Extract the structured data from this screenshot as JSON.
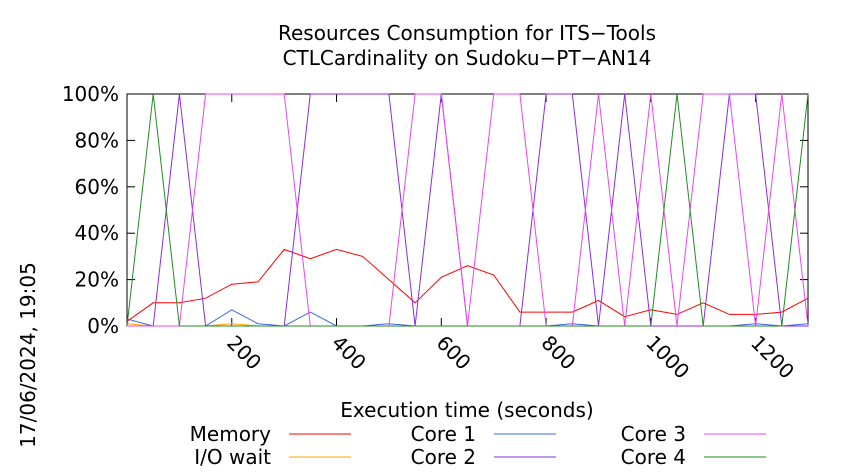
{
  "chart_data": {
    "type": "line",
    "title_lines": [
      "Resources Consumption for ITS−Tools",
      "CTLCardinality on Sudoku−PT−AN14"
    ],
    "xlabel": "Execution time (seconds)",
    "ylabel": "",
    "side_label": "17/06/2024, 19:05",
    "xlim": [
      0,
      1300
    ],
    "ylim": [
      0,
      100
    ],
    "x_ticks": [
      200,
      400,
      600,
      800,
      1000,
      1200
    ],
    "y_ticks": [
      {
        "value": 0,
        "label": "0%"
      },
      {
        "value": 20,
        "label": "20%"
      },
      {
        "value": 40,
        "label": "40%"
      },
      {
        "value": 60,
        "label": "60%"
      },
      {
        "value": 80,
        "label": "80%"
      },
      {
        "value": 100,
        "label": "100%"
      }
    ],
    "grid": false,
    "legend_position": "bottom",
    "series": [
      {
        "name": "Memory",
        "color": "#ff0000",
        "points": [
          [
            0,
            2
          ],
          [
            50,
            10
          ],
          [
            100,
            10
          ],
          [
            150,
            12
          ],
          [
            200,
            18
          ],
          [
            250,
            19
          ],
          [
            300,
            33
          ],
          [
            350,
            29
          ],
          [
            400,
            33
          ],
          [
            450,
            30
          ],
          [
            500,
            20
          ],
          [
            550,
            10
          ],
          [
            600,
            21
          ],
          [
            650,
            26
          ],
          [
            700,
            22
          ],
          [
            750,
            6
          ],
          [
            800,
            6
          ],
          [
            850,
            6
          ],
          [
            900,
            11
          ],
          [
            950,
            4
          ],
          [
            1000,
            7
          ],
          [
            1050,
            5
          ],
          [
            1100,
            10
          ],
          [
            1150,
            5
          ],
          [
            1200,
            5
          ],
          [
            1250,
            6
          ],
          [
            1300,
            12
          ]
        ]
      },
      {
        "name": "I/O wait",
        "color": "#ffa500",
        "points": [
          [
            0,
            1
          ],
          [
            50,
            0
          ],
          [
            100,
            0
          ],
          [
            150,
            0
          ],
          [
            200,
            1
          ],
          [
            250,
            0
          ],
          [
            300,
            0
          ],
          [
            350,
            0
          ],
          [
            400,
            0
          ],
          [
            450,
            0
          ],
          [
            500,
            0
          ],
          [
            550,
            0
          ],
          [
            600,
            0
          ],
          [
            650,
            0
          ],
          [
            700,
            0
          ],
          [
            750,
            0
          ],
          [
            800,
            0
          ],
          [
            850,
            0
          ],
          [
            900,
            0
          ],
          [
            950,
            0
          ],
          [
            1000,
            0
          ],
          [
            1050,
            0
          ],
          [
            1100,
            0
          ],
          [
            1150,
            0
          ],
          [
            1200,
            0
          ],
          [
            1250,
            0
          ],
          [
            1300,
            0
          ]
        ]
      },
      {
        "name": "Core 1",
        "color": "#4169e1",
        "points": [
          [
            0,
            3
          ],
          [
            50,
            0
          ],
          [
            100,
            0
          ],
          [
            150,
            0
          ],
          [
            200,
            7
          ],
          [
            250,
            1
          ],
          [
            300,
            0
          ],
          [
            350,
            6
          ],
          [
            400,
            0
          ],
          [
            450,
            0
          ],
          [
            500,
            1
          ],
          [
            550,
            0
          ],
          [
            600,
            0
          ],
          [
            650,
            0
          ],
          [
            700,
            0
          ],
          [
            750,
            0
          ],
          [
            800,
            0
          ],
          [
            850,
            1
          ],
          [
            900,
            0
          ],
          [
            950,
            0
          ],
          [
            1000,
            0
          ],
          [
            1050,
            0
          ],
          [
            1100,
            0
          ],
          [
            1150,
            0
          ],
          [
            1200,
            1
          ],
          [
            1250,
            0
          ],
          [
            1300,
            1
          ]
        ]
      },
      {
        "name": "Core 2",
        "color": "#8a2be2",
        "points": [
          [
            0,
            0
          ],
          [
            50,
            0
          ],
          [
            100,
            100
          ],
          [
            150,
            0
          ],
          [
            200,
            0
          ],
          [
            250,
            0
          ],
          [
            300,
            0
          ],
          [
            350,
            100
          ],
          [
            400,
            100
          ],
          [
            450,
            100
          ],
          [
            500,
            100
          ],
          [
            550,
            0
          ],
          [
            600,
            100
          ],
          [
            650,
            0
          ],
          [
            700,
            0
          ],
          [
            750,
            0
          ],
          [
            800,
            100
          ],
          [
            850,
            100
          ],
          [
            900,
            0
          ],
          [
            950,
            100
          ],
          [
            1000,
            0
          ],
          [
            1050,
            0
          ],
          [
            1100,
            0
          ],
          [
            1150,
            100
          ],
          [
            1200,
            100
          ],
          [
            1250,
            0
          ],
          [
            1300,
            0
          ]
        ]
      },
      {
        "name": "Core 3",
        "color": "#ee44ee",
        "points": [
          [
            0,
            0
          ],
          [
            50,
            0
          ],
          [
            100,
            0
          ],
          [
            150,
            100
          ],
          [
            200,
            100
          ],
          [
            250,
            100
          ],
          [
            300,
            100
          ],
          [
            350,
            0
          ],
          [
            400,
            0
          ],
          [
            450,
            0
          ],
          [
            500,
            0
          ],
          [
            550,
            100
          ],
          [
            600,
            100
          ],
          [
            650,
            0
          ],
          [
            700,
            100
          ],
          [
            750,
            100
          ],
          [
            800,
            0
          ],
          [
            850,
            0
          ],
          [
            900,
            100
          ],
          [
            950,
            0
          ],
          [
            1000,
            100
          ],
          [
            1050,
            0
          ],
          [
            1100,
            100
          ],
          [
            1150,
            100
          ],
          [
            1200,
            0
          ],
          [
            1250,
            100
          ],
          [
            1300,
            0
          ]
        ]
      },
      {
        "name": "Core 4",
        "color": "#228b22",
        "points": [
          [
            0,
            0
          ],
          [
            50,
            100
          ],
          [
            100,
            0
          ],
          [
            150,
            0
          ],
          [
            200,
            0
          ],
          [
            250,
            0
          ],
          [
            300,
            0
          ],
          [
            350,
            0
          ],
          [
            400,
            0
          ],
          [
            450,
            0
          ],
          [
            500,
            0
          ],
          [
            550,
            0
          ],
          [
            600,
            0
          ],
          [
            650,
            0
          ],
          [
            700,
            0
          ],
          [
            750,
            0
          ],
          [
            800,
            0
          ],
          [
            850,
            0
          ],
          [
            900,
            0
          ],
          [
            950,
            0
          ],
          [
            1000,
            0
          ],
          [
            1050,
            100
          ],
          [
            1100,
            0
          ],
          [
            1150,
            0
          ],
          [
            1200,
            0
          ],
          [
            1250,
            0
          ],
          [
            1300,
            100
          ]
        ]
      }
    ]
  }
}
